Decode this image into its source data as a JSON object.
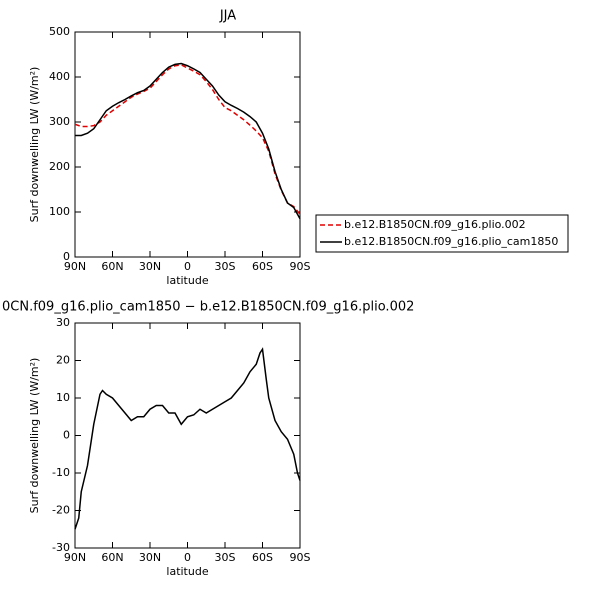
{
  "chart_data": [
    {
      "type": "line",
      "title": "JJA",
      "xlabel": "latitude",
      "ylabel": "Surf downwelling LW (W/m²)",
      "x": [
        90,
        85,
        80,
        75,
        70,
        65,
        60,
        55,
        50,
        45,
        40,
        35,
        30,
        25,
        20,
        15,
        10,
        5,
        0,
        -5,
        -10,
        -15,
        -20,
        -25,
        -30,
        -35,
        -40,
        -45,
        -50,
        -55,
        -60,
        -65,
        -70,
        -75,
        -80,
        -85,
        -90
      ],
      "xlim": [
        90,
        -90
      ],
      "xticks": [
        {
          "value": 90,
          "label": "90N"
        },
        {
          "value": 60,
          "label": "60N"
        },
        {
          "value": 30,
          "label": "30N"
        },
        0,
        {
          "value": -30,
          "label": "30S"
        },
        {
          "value": -60,
          "label": "60S"
        },
        {
          "value": -90,
          "label": "90S"
        }
      ],
      "ylim": [
        0,
        500
      ],
      "yticks": [
        0,
        100,
        200,
        300,
        400,
        500
      ],
      "legend": "right",
      "series": [
        {
          "name": "b.e12.B1850CN.f09_g16.plio.002",
          "color": "#e00000",
          "dashed": true,
          "values": [
            295,
            290,
            290,
            292,
            300,
            315,
            325,
            335,
            345,
            355,
            362,
            368,
            375,
            390,
            405,
            418,
            425,
            427,
            420,
            413,
            405,
            390,
            372,
            350,
            332,
            325,
            315,
            305,
            293,
            280,
            265,
            235,
            185,
            148,
            120,
            112,
            95
          ]
        },
        {
          "name": "b.e12.B1850CN.f09_g16.plio_cam1850",
          "color": "#000000",
          "dashed": false,
          "values": [
            270,
            270,
            275,
            285,
            305,
            325,
            335,
            343,
            350,
            358,
            365,
            370,
            380,
            395,
            410,
            422,
            428,
            430,
            425,
            418,
            410,
            395,
            380,
            360,
            345,
            337,
            330,
            322,
            312,
            300,
            275,
            240,
            190,
            150,
            120,
            110,
            85
          ]
        }
      ]
    },
    {
      "type": "line",
      "title": "0CN.f09_g16.plio_cam1850 − b.e12.B1850CN.f09_g16.plio.002",
      "xlabel": "latitude",
      "ylabel": "Surf downwelling LW (W/m²)",
      "x": [
        90,
        87,
        85,
        80,
        75,
        70,
        68,
        65,
        60,
        55,
        50,
        45,
        40,
        35,
        30,
        25,
        20,
        15,
        10,
        5,
        0,
        -5,
        -10,
        -15,
        -20,
        -25,
        -30,
        -35,
        -40,
        -45,
        -50,
        -55,
        -58,
        -60,
        -63,
        -65,
        -70,
        -75,
        -80,
        -85,
        -88,
        -90
      ],
      "xlim": [
        90,
        -90
      ],
      "xticks": [
        {
          "value": 90,
          "label": "90N"
        },
        {
          "value": 60,
          "label": "60N"
        },
        {
          "value": 30,
          "label": "30N"
        },
        0,
        {
          "value": -30,
          "label": "30S"
        },
        {
          "value": -60,
          "label": "60S"
        },
        {
          "value": -90,
          "label": "90S"
        }
      ],
      "ylim": [
        -30,
        30
      ],
      "yticks": [
        -30,
        -20,
        -10,
        0,
        10,
        20,
        30
      ],
      "series": [
        {
          "color": "#000000",
          "dashed": false,
          "values": [
            -25,
            -22,
            -15,
            -8,
            3,
            11,
            12,
            11,
            10,
            8,
            6,
            4,
            5,
            5,
            7,
            8,
            8,
            6,
            6,
            3,
            5,
            5.5,
            7,
            6,
            7,
            8,
            9,
            10,
            12,
            14,
            17,
            19,
            22,
            23,
            15,
            10,
            4,
            1,
            -1,
            -5,
            -10,
            -12
          ]
        }
      ]
    }
  ]
}
